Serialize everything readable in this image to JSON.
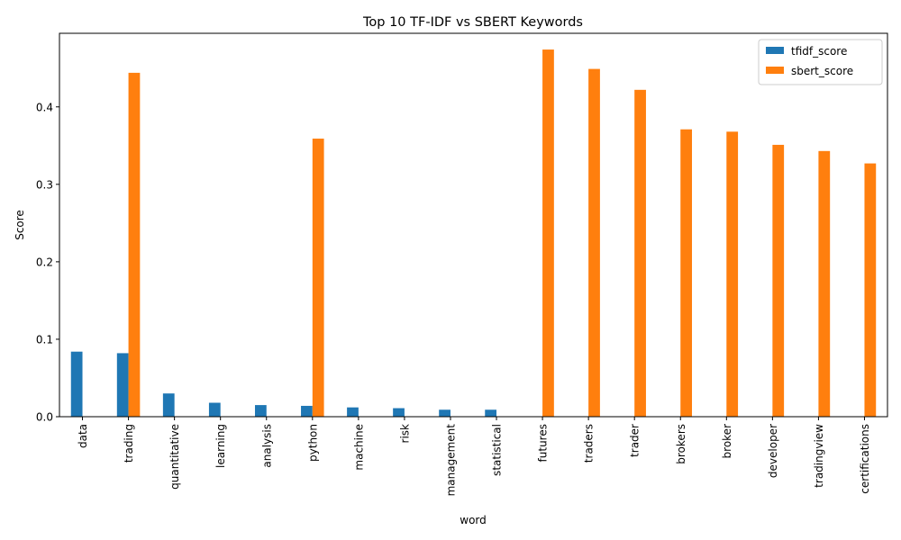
{
  "chart_data": {
    "type": "bar",
    "title": "Top 10 TF-IDF vs SBERT Keywords",
    "xlabel": "word",
    "ylabel": "Score",
    "ylim": [
      0,
      0.495
    ],
    "yticks": [
      "0.0",
      "0.1",
      "0.2",
      "0.3",
      "0.4"
    ],
    "ytick_values": [
      0,
      0.1,
      0.2,
      0.3,
      0.4
    ],
    "grid": false,
    "legend_position": "top-right",
    "categories": [
      "data",
      "trading",
      "quantitative",
      "learning",
      "analysis",
      "python",
      "machine",
      "risk",
      "management",
      "statistical",
      "futures",
      "traders",
      "trader",
      "brokers",
      "broker",
      "developer",
      "tradingview",
      "certifications"
    ],
    "series": [
      {
        "name": "tfidf_score",
        "color": "#1f77b4",
        "values": [
          0.084,
          0.082,
          0.03,
          0.018,
          0.015,
          0.014,
          0.012,
          0.011,
          0.009,
          0.009,
          0,
          0,
          0,
          0,
          0,
          0,
          0,
          0
        ]
      },
      {
        "name": "sbert_score",
        "color": "#ff7f0e",
        "values": [
          0,
          0.444,
          0,
          0,
          0,
          0.359,
          0,
          0,
          0,
          0,
          0.474,
          0.449,
          0.422,
          0.371,
          0.368,
          0.351,
          0.343,
          0.327
        ]
      }
    ]
  }
}
